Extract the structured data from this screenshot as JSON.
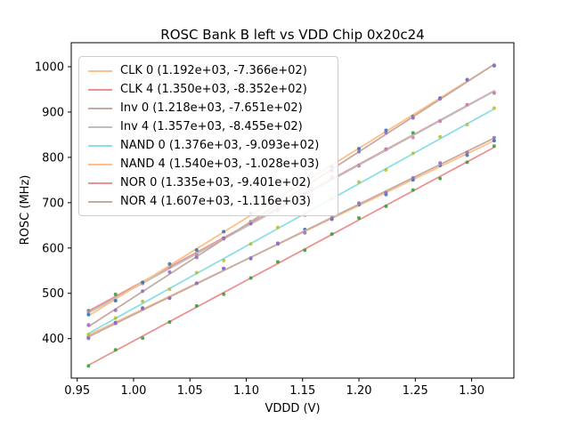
{
  "chart_data": {
    "type": "scatter",
    "title": "ROSC Bank B left vs VDD Chip 0x20c24",
    "xlabel": "VDDD (V)",
    "ylabel": "ROSC (MHz)",
    "xlim": [
      0.9447,
      1.3375
    ],
    "ylim": [
      313,
      1053
    ],
    "xticks": [
      0.95,
      1.0,
      1.05,
      1.1,
      1.15,
      1.2,
      1.25,
      1.3
    ],
    "yticks": [
      400,
      500,
      600,
      700,
      800,
      900,
      1000
    ],
    "grid": false,
    "legend_position": "upper left",
    "x": [
      0.96,
      0.984,
      1.008,
      1.032,
      1.056,
      1.08,
      1.104,
      1.128,
      1.152,
      1.176,
      1.2,
      1.224,
      1.248,
      1.272,
      1.296,
      1.32
    ],
    "series": [
      {
        "name": "CLK 0",
        "label": "CLK 0 (1.192e+03, -7.366e+02)",
        "slope": 1192,
        "intercept": -736.6,
        "line_color": "#ffbf87",
        "marker_color": "#1f77b4"
      },
      {
        "name": "CLK 4",
        "label": "CLK 4 (1.350e+03, -8.352e+02)",
        "slope": 1350,
        "intercept": -835.2,
        "line_color": "#eb9394",
        "marker_color": "#2ca02c"
      },
      {
        "name": "Inv 0",
        "label": "Inv 0 (1.218e+03, -7.651e+02)",
        "slope": 1218,
        "intercept": -765.1,
        "line_color": "#c6aba5",
        "marker_color": "#9467bd"
      },
      {
        "name": "Inv 4",
        "label": "Inv 4 (1.357e+03, -8.455e+02)",
        "slope": 1357,
        "intercept": -845.5,
        "line_color": "#bfbfbf",
        "marker_color": "#e377c2"
      },
      {
        "name": "NAND 0",
        "label": "NAND 0 (1.376e+03, -9.093e+02)",
        "slope": 1376,
        "intercept": -909.3,
        "line_color": "#8bdfe7",
        "marker_color": "#bcbd22"
      },
      {
        "name": "NAND 4",
        "label": "NAND 4 (1.540e+03, -1.028e+03)",
        "slope": 1540,
        "intercept": -1028.0,
        "line_color": "#ffbf87",
        "marker_color": "#1f77b4"
      },
      {
        "name": "NOR 0",
        "label": "NOR 0 (1.335e+03, -9.401e+02)",
        "slope": 1335,
        "intercept": -940.1,
        "line_color": "#eb9394",
        "marker_color": "#2ca02c"
      },
      {
        "name": "NOR 4",
        "label": "NOR 4 (1.607e+03, -1.116e+03)",
        "slope": 1607,
        "intercept": -1116.0,
        "line_color": "#c6aba5",
        "marker_color": "#9467bd"
      }
    ]
  }
}
